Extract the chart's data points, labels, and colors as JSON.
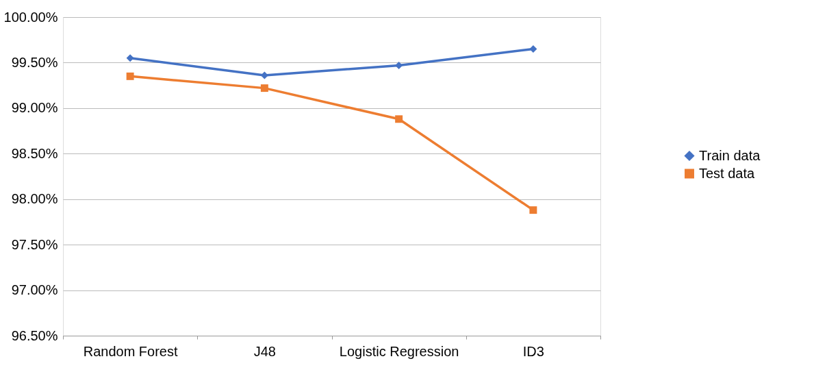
{
  "chart_data": {
    "type": "line",
    "categories": [
      "Random Forest",
      "J48",
      "Logistic Regression",
      "ID3"
    ],
    "series": [
      {
        "name": "Train data",
        "color": "#4472c4",
        "marker": "diamond",
        "values": [
          99.55,
          99.36,
          99.47,
          99.65
        ]
      },
      {
        "name": "Test data",
        "color": "#ed7d31",
        "marker": "square",
        "values": [
          99.35,
          99.22,
          98.88,
          97.88
        ]
      }
    ],
    "ylim": [
      96.5,
      100
    ],
    "yticks": [
      {
        "value": 96.5,
        "label": "96.50%"
      },
      {
        "value": 97,
        "label": "97.00%"
      },
      {
        "value": 97.5,
        "label": "97.50%"
      },
      {
        "value": 98,
        "label": "98.00%"
      },
      {
        "value": 98.5,
        "label": "98.50%"
      },
      {
        "value": 99,
        "label": "99.00%"
      },
      {
        "value": 99.5,
        "label": "99.50%"
      },
      {
        "value": 100,
        "label": "100.00%"
      }
    ],
    "grid": "y",
    "legend": "right",
    "line_style": "solid"
  }
}
